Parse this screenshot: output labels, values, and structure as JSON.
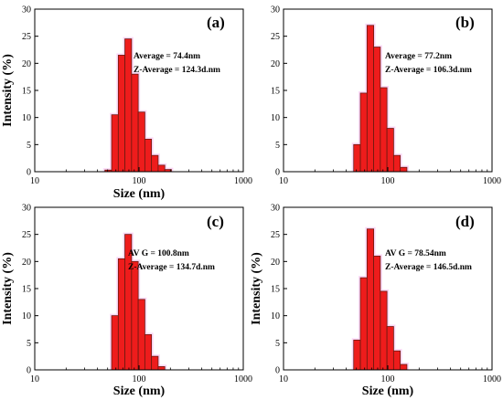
{
  "chart_data": [
    {
      "type": "bar",
      "panel_label": "(a)",
      "xlabel": "Size (nm)",
      "ylabel": "Intensity (%)",
      "xscale": "log",
      "xlim": [
        10,
        1000
      ],
      "ylim": [
        0,
        30
      ],
      "xticks": [
        "10",
        "100",
        "1000"
      ],
      "yticks": [
        "0",
        "5",
        "10",
        "15",
        "20",
        "25",
        "30"
      ],
      "annotations": [
        "Average = 74.4nm",
        "Z-Average = 124.3d.nm"
      ],
      "bins": [
        {
          "size": 50.7,
          "value": 0.3
        },
        {
          "size": 58.8,
          "value": 10.5
        },
        {
          "size": 68.1,
          "value": 21.5
        },
        {
          "size": 78.8,
          "value": 24.5
        },
        {
          "size": 91.3,
          "value": 18.0
        },
        {
          "size": 105.7,
          "value": 11.0
        },
        {
          "size": 122.4,
          "value": 6.0
        },
        {
          "size": 141.8,
          "value": 3.0
        },
        {
          "size": 164.2,
          "value": 1.2
        },
        {
          "size": 190.1,
          "value": 0.4
        }
      ]
    },
    {
      "type": "bar",
      "panel_label": "(b)",
      "xlabel": "",
      "ylabel": "",
      "xscale": "log",
      "xlim": [
        10,
        1000
      ],
      "ylim": [
        0,
        30
      ],
      "xticks": [
        "10",
        "100",
        "1000"
      ],
      "yticks": [
        "0",
        "5",
        "10",
        "15",
        "20",
        "25",
        "30"
      ],
      "annotations": [
        "Average = 77.2nm",
        "Z-Average = 106.3d.nm"
      ],
      "bins": [
        {
          "size": 50.7,
          "value": 5.0
        },
        {
          "size": 58.8,
          "value": 14.5
        },
        {
          "size": 68.1,
          "value": 27.0
        },
        {
          "size": 78.8,
          "value": 23.0
        },
        {
          "size": 91.3,
          "value": 15.5
        },
        {
          "size": 105.7,
          "value": 8.0
        },
        {
          "size": 122.4,
          "value": 3.0
        },
        {
          "size": 141.8,
          "value": 0.8
        }
      ]
    },
    {
      "type": "bar",
      "panel_label": "(c)",
      "xlabel": "Size (nm)",
      "ylabel": "Intensity (%)",
      "xscale": "log",
      "xlim": [
        10,
        1000
      ],
      "ylim": [
        0,
        30
      ],
      "xticks": [
        "10",
        "100",
        "1000"
      ],
      "yticks": [
        "0",
        "5",
        "10",
        "15",
        "20",
        "25",
        "30"
      ],
      "annotations": [
        "AV G = 100.8nm",
        "Z-Average = 134.7d.nm"
      ],
      "bins": [
        {
          "size": 58.8,
          "value": 10.0
        },
        {
          "size": 68.1,
          "value": 20.5
        },
        {
          "size": 78.8,
          "value": 25.0
        },
        {
          "size": 91.3,
          "value": 20.0
        },
        {
          "size": 105.7,
          "value": 13.0
        },
        {
          "size": 122.4,
          "value": 6.5
        },
        {
          "size": 141.8,
          "value": 2.5
        },
        {
          "size": 164.2,
          "value": 0.6
        }
      ]
    },
    {
      "type": "bar",
      "panel_label": "(d)",
      "xlabel": "Size (nm)",
      "ylabel": "Intensity (%)",
      "xscale": "log",
      "xlim": [
        10,
        1000
      ],
      "ylim": [
        0,
        30
      ],
      "xticks": [
        "10",
        "100",
        "1000"
      ],
      "yticks": [
        "0",
        "5",
        "10",
        "15",
        "20",
        "25",
        "30"
      ],
      "annotations": [
        "AV G = 78.54nm",
        "Z-Average = 146.5d.nm"
      ],
      "bins": [
        {
          "size": 50.7,
          "value": 5.5
        },
        {
          "size": 58.8,
          "value": 17.0
        },
        {
          "size": 68.1,
          "value": 26.0
        },
        {
          "size": 78.8,
          "value": 21.0
        },
        {
          "size": 91.3,
          "value": 14.5
        },
        {
          "size": 105.7,
          "value": 8.0
        },
        {
          "size": 122.4,
          "value": 3.5
        },
        {
          "size": 141.8,
          "value": 1.0
        }
      ]
    }
  ],
  "colors": {
    "bar_fill": "#ee1c1c",
    "bar_edge": "#6b1a10",
    "halo": "#f7b8f0",
    "axis": "#000000"
  }
}
